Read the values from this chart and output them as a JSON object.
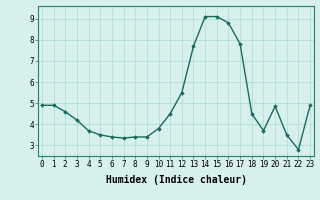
{
  "x": [
    0,
    1,
    2,
    3,
    4,
    5,
    6,
    7,
    8,
    9,
    10,
    11,
    12,
    13,
    14,
    15,
    16,
    17,
    18,
    19,
    20,
    21,
    22,
    23
  ],
  "y": [
    4.9,
    4.9,
    4.6,
    4.2,
    3.7,
    3.5,
    3.4,
    3.35,
    3.4,
    3.4,
    3.8,
    4.5,
    5.5,
    7.7,
    9.1,
    9.1,
    8.8,
    7.8,
    4.5,
    3.7,
    4.85,
    3.5,
    2.8,
    4.9
  ],
  "line_color": "#1a6b5e",
  "marker": "D",
  "marker_size": 1.8,
  "line_width": 1.0,
  "bg_color": "#d7f0ed",
  "grid_color": "#aaddd6",
  "xlabel": "Humidex (Indice chaleur)",
  "xlabel_fontsize": 7,
  "yticks": [
    3,
    4,
    5,
    6,
    7,
    8,
    9
  ],
  "xticks": [
    0,
    1,
    2,
    3,
    4,
    5,
    6,
    7,
    8,
    9,
    10,
    11,
    12,
    13,
    14,
    15,
    16,
    17,
    18,
    19,
    20,
    21,
    22,
    23
  ],
  "ylim": [
    2.5,
    9.6
  ],
  "xlim": [
    -0.3,
    23.3
  ],
  "tick_fontsize": 5.5,
  "spine_color": "#2d7d70"
}
